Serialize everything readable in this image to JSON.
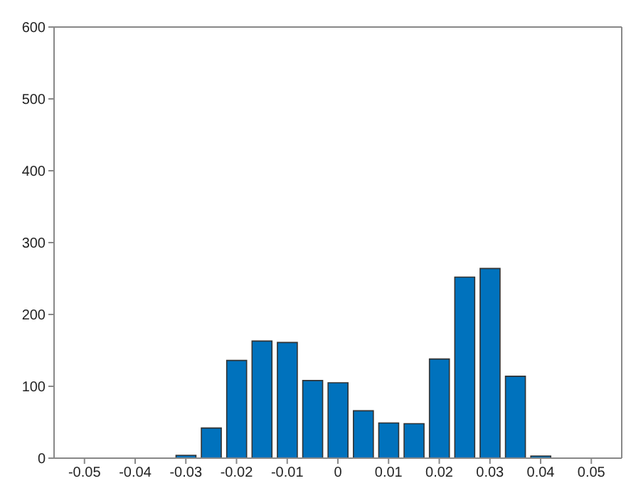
{
  "chart_data": {
    "type": "bar",
    "x": [
      -0.03,
      -0.025,
      -0.02,
      -0.015,
      -0.01,
      -0.005,
      0,
      0.005,
      0.01,
      0.015,
      0.02,
      0.025,
      0.03,
      0.035,
      0.04
    ],
    "values": [
      4,
      42,
      136,
      163,
      161,
      108,
      105,
      66,
      49,
      48,
      138,
      252,
      264,
      114,
      3
    ],
    "color": "#0072bd",
    "xlim": [
      -0.056,
      0.056
    ],
    "xticks": [
      -0.05,
      -0.04,
      -0.03,
      -0.02,
      -0.01,
      0,
      0.01,
      0.02,
      0.03,
      0.04,
      0.05
    ],
    "ylim": [
      0,
      600
    ],
    "yticks": [
      0,
      100,
      200,
      300,
      400,
      500,
      600
    ],
    "grid": false
  }
}
